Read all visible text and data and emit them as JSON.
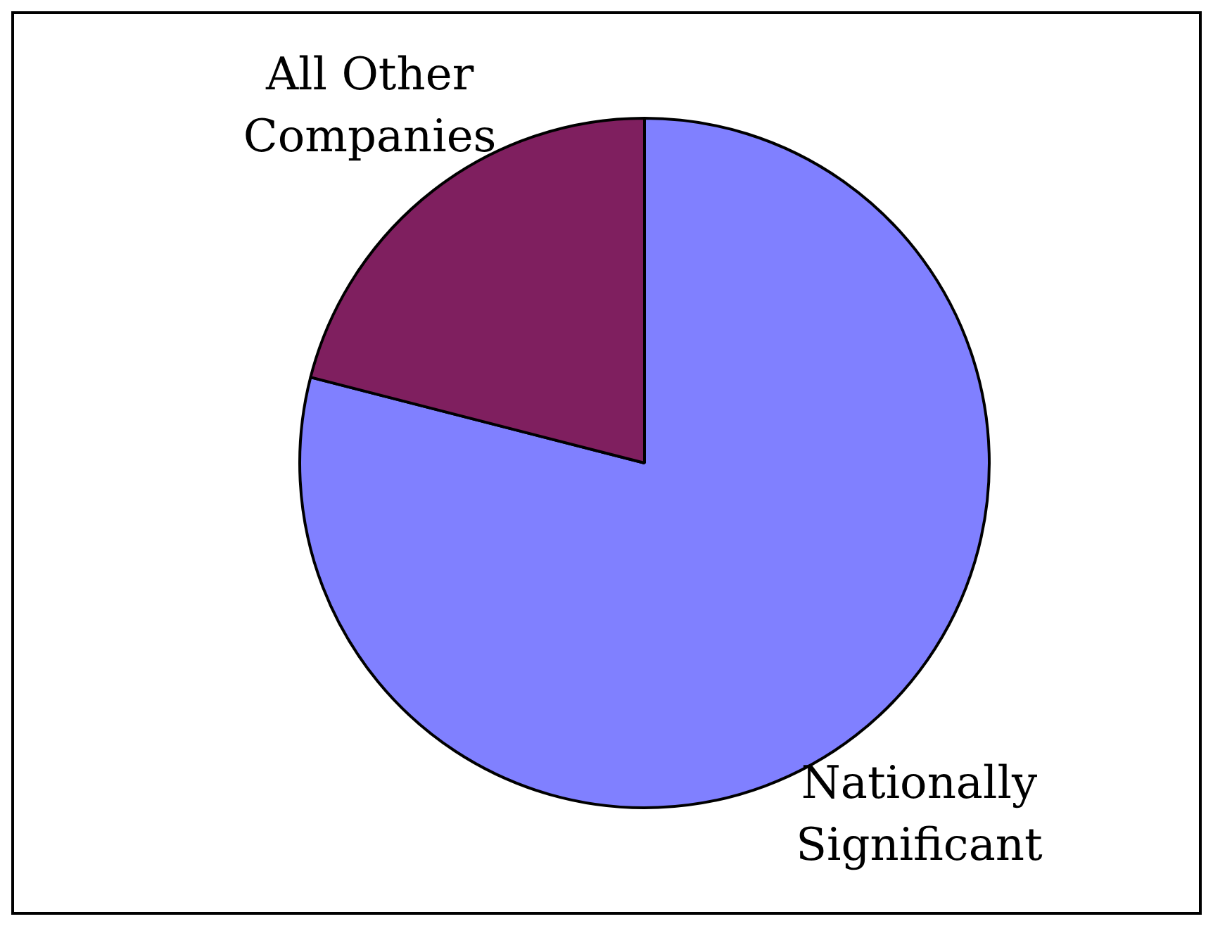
{
  "chart_data": {
    "type": "pie",
    "categories": [
      "Nationally Significant",
      "All Other Companies"
    ],
    "values": [
      79,
      21
    ],
    "colors": [
      "#8080ff",
      "#7f1f5f"
    ],
    "legend": false
  }
}
